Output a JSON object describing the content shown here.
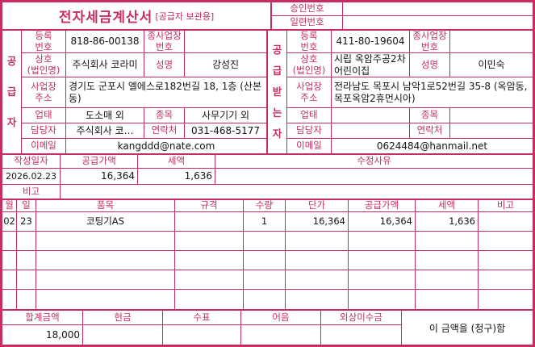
{
  "colors": {
    "accent": "#c62e60",
    "ink": "#141414"
  },
  "top": {
    "title": "전자세금계산서",
    "title_tag": "[공급자 보관용]",
    "approval_label": "승인번호",
    "approval_value": "",
    "serial_label": "일련번호",
    "serial_value": ""
  },
  "labels": {
    "reg_no": "등록\n번호",
    "sub_biz": "종사업장\n번호",
    "company": "상호\n(법인명)",
    "name": "성명",
    "address": "사업장\n주소",
    "biz_type": "업태",
    "biz_item": "종목",
    "contact_person": "담당자",
    "contact": "연락처",
    "email": "이메일"
  },
  "supplier": {
    "side_label": "공급자",
    "reg_no": "818-86-00138",
    "sub_biz_no": "",
    "company": "주식회사 코라미",
    "ceo_name": "강성진",
    "address": "경기도 군포시 엘에스로182번길 18, 1층 (산본동)",
    "biz_type": "도소매 외",
    "biz_item": "사무기기 외",
    "contact_person": "주식회사 코…",
    "contact": "031-468-5177",
    "email": "kangddd@nate.com"
  },
  "buyer": {
    "side_label": "공급받는자",
    "reg_no": "411-80-19604",
    "sub_biz_no": "",
    "company": "시립 옥암주공2차 어린이집",
    "ceo_name": "이민숙",
    "address": "전라남도 목포시 남악1로52번길 35-8 (옥암동, 목포옥암2휴먼시아)",
    "biz_type": "",
    "biz_item": "",
    "contact_person": "",
    "contact": "",
    "email": "0624484@hanmail.net"
  },
  "summary": {
    "date_label": "작성일자",
    "date": "2026.02.23",
    "supply_label": "공급가액",
    "supply": "16,364",
    "tax_label": "세액",
    "tax": "1,636",
    "reason_label": "수정사유",
    "reason": "",
    "remark_label": "비고",
    "remark": ""
  },
  "items": {
    "headers": [
      "월",
      "일",
      "품목",
      "규격",
      "수량",
      "단가",
      "공급가액",
      "세액",
      "비고"
    ],
    "rows": [
      {
        "month": "02",
        "day": "23",
        "name": "코팅기AS",
        "spec": "",
        "qty": "1",
        "unit_price": "16,364",
        "supply": "16,364",
        "tax": "1,636",
        "note": ""
      },
      {
        "month": "",
        "day": "",
        "name": "",
        "spec": "",
        "qty": "",
        "unit_price": "",
        "supply": "",
        "tax": "",
        "note": ""
      },
      {
        "month": "",
        "day": "",
        "name": "",
        "spec": "",
        "qty": "",
        "unit_price": "",
        "supply": "",
        "tax": "",
        "note": ""
      },
      {
        "month": "",
        "day": "",
        "name": "",
        "spec": "",
        "qty": "",
        "unit_price": "",
        "supply": "",
        "tax": "",
        "note": ""
      },
      {
        "month": "",
        "day": "",
        "name": "",
        "spec": "",
        "qty": "",
        "unit_price": "",
        "supply": "",
        "tax": "",
        "note": ""
      }
    ]
  },
  "footer": {
    "total_label": "합계금액",
    "total": "18,000",
    "cash_label": "현금",
    "cash": "",
    "check_label": "수표",
    "check": "",
    "bill_label": "어음",
    "bill": "",
    "receivable_label": "외상미수금",
    "receivable": "",
    "statement": "이 금액을 (청구)함"
  }
}
